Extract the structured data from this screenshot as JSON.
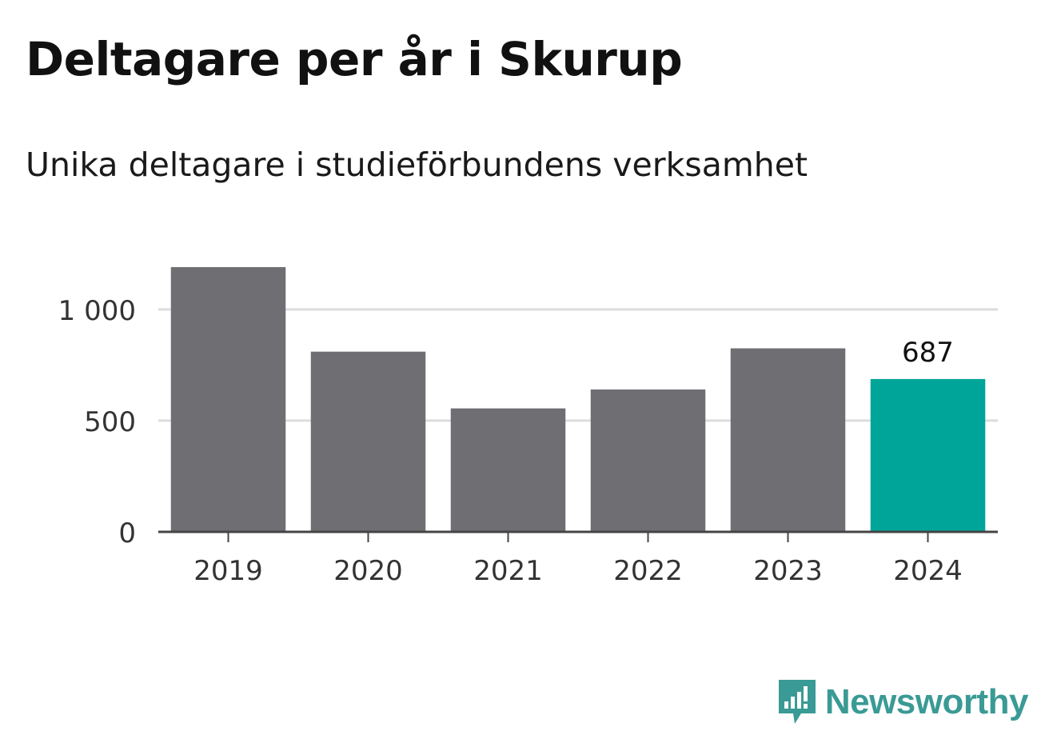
{
  "chart_data": {
    "type": "bar",
    "title": "Deltagare per år i Skurup",
    "subtitle": "Unika deltagare i studieförbundens verksamhet",
    "categories": [
      "2019",
      "2020",
      "2021",
      "2022",
      "2023",
      "2024"
    ],
    "values": [
      1190,
      810,
      555,
      640,
      825,
      687
    ],
    "ylim": [
      0,
      1190
    ],
    "yticks": [
      0,
      500,
      1000
    ],
    "ytick_labels": [
      "0",
      "500",
      "1 000"
    ],
    "grid": true,
    "highlight_index": 5,
    "data_labels": [
      {
        "index": 5,
        "text": "687"
      }
    ],
    "colors": {
      "bar": "#6f6e73",
      "highlight": "#00a59a",
      "grid": "#dddddd",
      "axis": "#444444"
    }
  },
  "brand": {
    "name": "Newsworthy",
    "icon": "newsworthy-logo-icon",
    "color": "#3a9a95"
  }
}
